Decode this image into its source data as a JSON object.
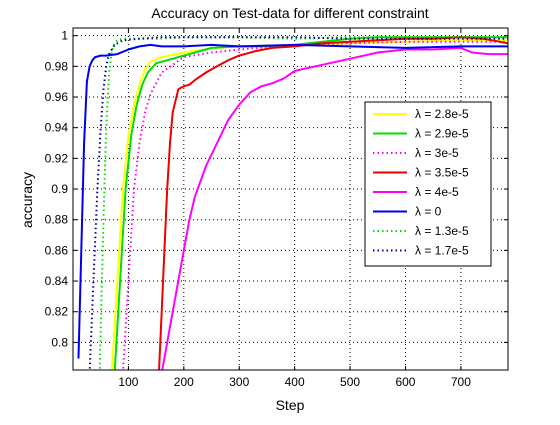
{
  "chart_data": {
    "type": "line",
    "title": "Accuracy on Test-data for different constraint",
    "xlabel": "Step",
    "ylabel": "accuracy",
    "xlim": [
      0,
      785
    ],
    "ylim": [
      0.782,
      1.005
    ],
    "xticks": [
      100,
      200,
      300,
      400,
      500,
      600,
      700
    ],
    "yticks": [
      0.8,
      0.82,
      0.84,
      0.86,
      0.88,
      0.9,
      0.92,
      0.94,
      0.96,
      0.98,
      1
    ],
    "ytick_labels": [
      "0.8",
      "0.82",
      "0.84",
      "0.86",
      "0.88",
      "0.9",
      "0.92",
      "0.94",
      "0.96",
      "0.98",
      "1"
    ],
    "grid": true,
    "legend_position": "right-middle",
    "series": [
      {
        "name": "λ = 2.8e-5",
        "color": "#ffff00",
        "style": "solid",
        "x": [
          70,
          80,
          90,
          100,
          110,
          120,
          130,
          140,
          160,
          200,
          260,
          300,
          400,
          500,
          600,
          700,
          785
        ],
        "y": [
          0.78,
          0.84,
          0.9,
          0.935,
          0.955,
          0.968,
          0.978,
          0.983,
          0.986,
          0.989,
          0.992,
          0.993,
          0.994,
          0.995,
          0.996,
          0.997,
          0.997
        ]
      },
      {
        "name": "λ = 2.9e-5",
        "color": "#00dd00",
        "style": "solid",
        "x": [
          75,
          85,
          95,
          105,
          115,
          125,
          135,
          150,
          200,
          250,
          300,
          350,
          400,
          450,
          500,
          550,
          600,
          700,
          785
        ],
        "y": [
          0.78,
          0.84,
          0.9,
          0.935,
          0.955,
          0.968,
          0.976,
          0.982,
          0.987,
          0.992,
          0.993,
          0.993,
          0.994,
          0.996,
          0.998,
          0.999,
          0.999,
          0.999,
          0.999
        ]
      },
      {
        "name": "λ = 3e-5",
        "color": "#ff00ff",
        "style": "dotted",
        "x": [
          90,
          100,
          110,
          120,
          130,
          140,
          160,
          200,
          250,
          300,
          400,
          500,
          600,
          700,
          785
        ],
        "y": [
          0.78,
          0.84,
          0.9,
          0.93,
          0.95,
          0.962,
          0.976,
          0.986,
          0.989,
          0.991,
          0.994,
          0.995,
          0.996,
          0.996,
          0.996
        ]
      },
      {
        "name": "λ = 3.5e-5",
        "color": "#ee0000",
        "style": "solid",
        "x": [
          155,
          160,
          165,
          170,
          175,
          180,
          190,
          200,
          210,
          220,
          240,
          260,
          280,
          300,
          330,
          360,
          400,
          450,
          500,
          550,
          600,
          650,
          700,
          740,
          785
        ],
        "y": [
          0.78,
          0.82,
          0.86,
          0.9,
          0.93,
          0.95,
          0.965,
          0.967,
          0.968,
          0.971,
          0.976,
          0.98,
          0.984,
          0.987,
          0.99,
          0.992,
          0.993,
          0.995,
          0.996,
          0.997,
          0.998,
          0.998,
          0.999,
          0.998,
          0.995
        ]
      },
      {
        "name": "λ = 4e-5",
        "color": "#ff00ff",
        "style": "solid",
        "x": [
          160,
          170,
          180,
          190,
          200,
          210,
          220,
          240,
          260,
          280,
          300,
          320,
          340,
          360,
          380,
          400,
          450,
          500,
          550,
          600,
          650,
          700,
          720,
          750,
          785
        ],
        "y": [
          0.78,
          0.8,
          0.82,
          0.84,
          0.86,
          0.88,
          0.895,
          0.915,
          0.93,
          0.945,
          0.955,
          0.963,
          0.967,
          0.969,
          0.972,
          0.977,
          0.981,
          0.985,
          0.989,
          0.991,
          0.991,
          0.992,
          0.989,
          0.988,
          0.988
        ]
      },
      {
        "name": "λ = 0",
        "color": "#0000ee",
        "style": "solid",
        "x": [
          10,
          15,
          20,
          25,
          30,
          35,
          40,
          50,
          60,
          80,
          100,
          120,
          140,
          160,
          200,
          250,
          300,
          400,
          500,
          600,
          700,
          785
        ],
        "y": [
          0.79,
          0.86,
          0.93,
          0.97,
          0.98,
          0.984,
          0.986,
          0.987,
          0.987,
          0.988,
          0.991,
          0.993,
          0.994,
          0.993,
          0.993,
          0.994,
          0.993,
          0.994,
          0.993,
          0.992,
          0.993,
          0.993
        ]
      },
      {
        "name": "λ = 1.3e-5",
        "color": "#00dd00",
        "style": "dotted",
        "x": [
          48,
          55,
          60,
          65,
          70,
          75,
          80,
          90,
          100,
          150,
          200,
          300,
          400,
          500,
          600,
          700,
          785
        ],
        "y": [
          0.78,
          0.88,
          0.94,
          0.975,
          0.99,
          0.995,
          0.997,
          0.998,
          0.998,
          0.998,
          0.999,
          0.999,
          0.998,
          0.999,
          0.999,
          0.999,
          0.999
        ]
      },
      {
        "name": "λ = 1.7e-5",
        "color": "#000088",
        "style": "dotted",
        "x": [
          30,
          38,
          44,
          50,
          55,
          60,
          65,
          75,
          90,
          120,
          160,
          200,
          300,
          400,
          500,
          600,
          700,
          785
        ],
        "y": [
          0.78,
          0.85,
          0.9,
          0.94,
          0.965,
          0.98,
          0.988,
          0.994,
          0.997,
          0.998,
          0.999,
          0.999,
          0.999,
          0.999,
          0.998,
          0.998,
          0.998,
          0.998
        ]
      }
    ]
  }
}
